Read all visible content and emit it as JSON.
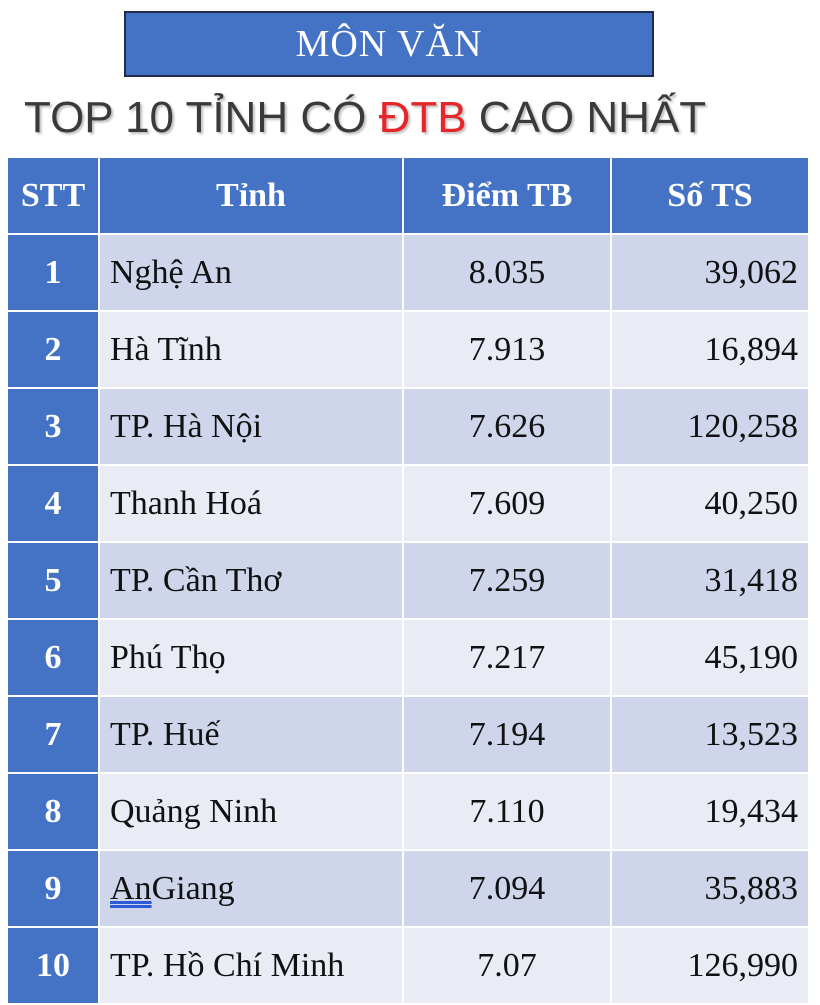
{
  "colors": {
    "header_blue": "#4472c4",
    "row_dark": "#cfd5ea",
    "row_light": "#e9ebf5",
    "highlight_red": "#e5262a"
  },
  "banner": {
    "title": "MÔN VĂN"
  },
  "heading": {
    "before": "TOP 10 TỈNH CÓ ",
    "highlight": "ĐTB",
    "after": " CAO NHẤT"
  },
  "table": {
    "headers": [
      "STT",
      "Tỉnh",
      "Điểm TB",
      "Số TS"
    ],
    "rows": [
      {
        "stt": "1",
        "tinh": "Nghệ An",
        "diem": "8.035",
        "so_ts": "39,062"
      },
      {
        "stt": "2",
        "tinh": "Hà Tĩnh",
        "diem": "7.913",
        "so_ts": "16,894"
      },
      {
        "stt": "3",
        "tinh": "TP. Hà Nội",
        "diem": "7.626",
        "so_ts": "120,258"
      },
      {
        "stt": "4",
        "tinh": "Thanh Hoá",
        "diem": "7.609",
        "so_ts": "40,250"
      },
      {
        "stt": "5",
        "tinh": "TP. Cần Thơ",
        "diem": "7.259",
        "so_ts": "31,418"
      },
      {
        "stt": "6",
        "tinh": "Phú Thọ",
        "diem": "7.217",
        "so_ts": "45,190"
      },
      {
        "stt": "7",
        "tinh": "TP. Huế",
        "diem": "7.194",
        "so_ts": "13,523"
      },
      {
        "stt": "8",
        "tinh": "Quảng Ninh",
        "diem": "7.110",
        "so_ts": "19,434"
      },
      {
        "stt": "9",
        "tinh": "An Giang",
        "diem": "7.094",
        "so_ts": "35,883"
      },
      {
        "stt": "10",
        "tinh": "TP. Hồ Chí Minh",
        "diem": "7.07",
        "so_ts": "126,990"
      }
    ]
  }
}
